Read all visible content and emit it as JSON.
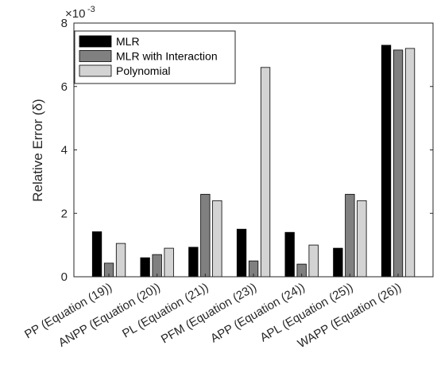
{
  "chart_data": {
    "type": "bar",
    "title": "",
    "xlabel": "",
    "ylabel": "Relative Error (δ)",
    "y_exponent_label": "×10",
    "y_exponent_power": "-3",
    "ylim": [
      0,
      8
    ],
    "yticks": [
      "0",
      "2",
      "4",
      "6",
      "8"
    ],
    "ytick_values": [
      0,
      2,
      4,
      6,
      8
    ],
    "grid": false,
    "legend_position": "top-left",
    "categories": [
      "PP (Equation (19))",
      "ANPP (Equation (20))",
      "PL (Equation (21))",
      "PFM (Equation (23))",
      "APP (Equation (24))",
      "APL (Equation (25))",
      "WAPP (Equation (26))"
    ],
    "series": [
      {
        "name": "MLR",
        "color": "#000000",
        "values": [
          1.42,
          0.6,
          0.93,
          1.5,
          1.4,
          0.9,
          7.3
        ]
      },
      {
        "name": "MLR with Interaction",
        "color": "#808080",
        "values": [
          0.43,
          0.7,
          2.6,
          0.5,
          0.4,
          2.6,
          7.15
        ]
      },
      {
        "name": "Polynomial",
        "color": "#d3d3d3",
        "values": [
          1.05,
          0.9,
          2.4,
          6.6,
          1.0,
          2.4,
          7.2
        ]
      }
    ]
  }
}
